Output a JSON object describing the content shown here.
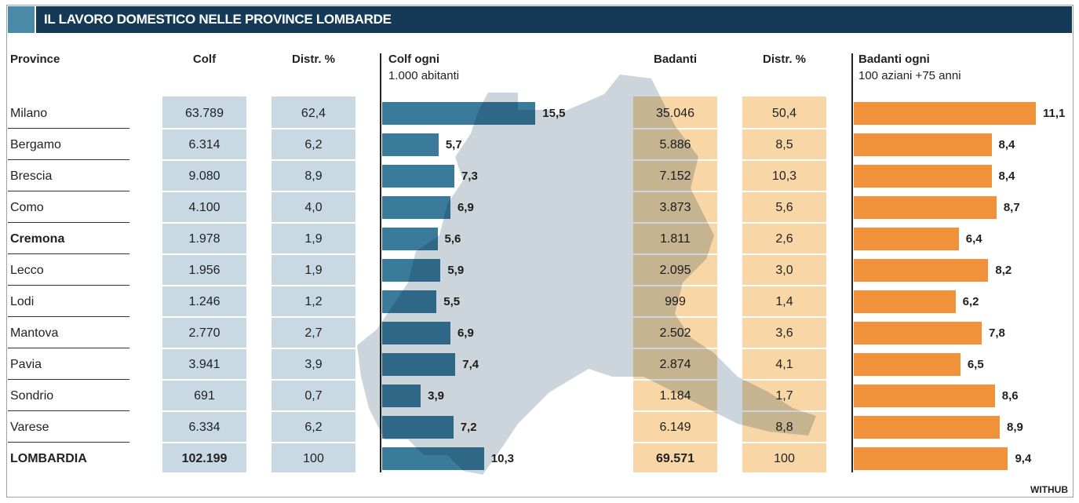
{
  "title": "IL LAVORO DOMESTICO NELLE PROVINCE LOMBARDE",
  "credit": "WITHUB",
  "colors": {
    "title_bar": "#143a55",
    "accent_square": "#4b8aa7",
    "colf_bar": "#3a7b9b",
    "colf_cell": "#c8d9e4",
    "badanti_bar": "#f0923b",
    "badanti_cell": "#f8d6a6",
    "map": "#c9d3da"
  },
  "chart_data": {
    "type": "table",
    "columns": [
      "Province",
      "Colf",
      "Distr. %",
      "Colf ogni 1.000 abitanti",
      "Badanti",
      "Distr. %",
      "Badanti ogni 100 aziani +75 anni"
    ],
    "header": {
      "province": "Province",
      "colf": "Colf",
      "colf_distr": "Distr. %",
      "colf_rate_1": "Colf ogni",
      "colf_rate_2": "1.000 abitanti",
      "badanti": "Badanti",
      "badanti_distr": "Distr. %",
      "badanti_rate_1": "Badanti ogni",
      "badanti_rate_2": "100 aziani +75 anni"
    },
    "rows": [
      {
        "province": "Milano",
        "colf": "63.789",
        "colf_distr": "62,4",
        "colf_rate": 15.5,
        "colf_rate_label": "15,5",
        "badanti": "35.046",
        "badanti_distr": "50,4",
        "badanti_rate": 11.1,
        "badanti_rate_label": "11,1"
      },
      {
        "province": "Bergamo",
        "colf": "6.314",
        "colf_distr": "6,2",
        "colf_rate": 5.7,
        "colf_rate_label": "5,7",
        "badanti": "5.886",
        "badanti_distr": "8,5",
        "badanti_rate": 8.4,
        "badanti_rate_label": "8,4"
      },
      {
        "province": "Brescia",
        "colf": "9.080",
        "colf_distr": "8,9",
        "colf_rate": 7.3,
        "colf_rate_label": "7,3",
        "badanti": "7.152",
        "badanti_distr": "10,3",
        "badanti_rate": 8.4,
        "badanti_rate_label": "8,4"
      },
      {
        "province": "Como",
        "colf": "4.100",
        "colf_distr": "4,0",
        "colf_rate": 6.9,
        "colf_rate_label": "6,9",
        "badanti": "3.873",
        "badanti_distr": "5,6",
        "badanti_rate": 8.7,
        "badanti_rate_label": "8,7"
      },
      {
        "province": "Cremona",
        "bold": true,
        "colf": "1.978",
        "colf_distr": "1,9",
        "colf_rate": 5.6,
        "colf_rate_label": "5,6",
        "badanti": "1.811",
        "badanti_distr": "2,6",
        "badanti_rate": 6.4,
        "badanti_rate_label": "6,4"
      },
      {
        "province": "Lecco",
        "colf": "1.956",
        "colf_distr": "1,9",
        "colf_rate": 5.9,
        "colf_rate_label": "5,9",
        "badanti": "2.095",
        "badanti_distr": "3,0",
        "badanti_rate": 8.2,
        "badanti_rate_label": "8,2"
      },
      {
        "province": "Lodi",
        "colf": "1.246",
        "colf_distr": "1,2",
        "colf_rate": 5.5,
        "colf_rate_label": "5,5",
        "badanti": "999",
        "badanti_distr": "1,4",
        "badanti_rate": 6.2,
        "badanti_rate_label": "6,2"
      },
      {
        "province": "Mantova",
        "colf": "2.770",
        "colf_distr": "2,7",
        "colf_rate": 6.9,
        "colf_rate_label": "6,9",
        "badanti": "2.502",
        "badanti_distr": "3,6",
        "badanti_rate": 7.8,
        "badanti_rate_label": "7,8"
      },
      {
        "province": "Pavia",
        "colf": "3.941",
        "colf_distr": "3,9",
        "colf_rate": 7.4,
        "colf_rate_label": "7,4",
        "badanti": "2.874",
        "badanti_distr": "4,1",
        "badanti_rate": 6.5,
        "badanti_rate_label": "6,5"
      },
      {
        "province": "Sondrio",
        "colf": "691",
        "colf_distr": "0,7",
        "colf_rate": 3.9,
        "colf_rate_label": "3,9",
        "badanti": "1.184",
        "badanti_distr": "1,7",
        "badanti_rate": 8.6,
        "badanti_rate_label": "8,6"
      },
      {
        "province": "Varese",
        "colf": "6.334",
        "colf_distr": "6,2",
        "colf_rate": 7.2,
        "colf_rate_label": "7,2",
        "badanti": "6.149",
        "badanti_distr": "8,8",
        "badanti_rate": 8.9,
        "badanti_rate_label": "8,9"
      },
      {
        "province": "LOMBARDIA",
        "bold": true,
        "total": true,
        "colf": "102.199",
        "colf_distr": "100",
        "colf_rate": 10.3,
        "colf_rate_label": "10,3",
        "badanti": "69.571",
        "badanti_distr": "100",
        "badanti_rate": 9.4,
        "badanti_rate_label": "9,4"
      }
    ]
  }
}
